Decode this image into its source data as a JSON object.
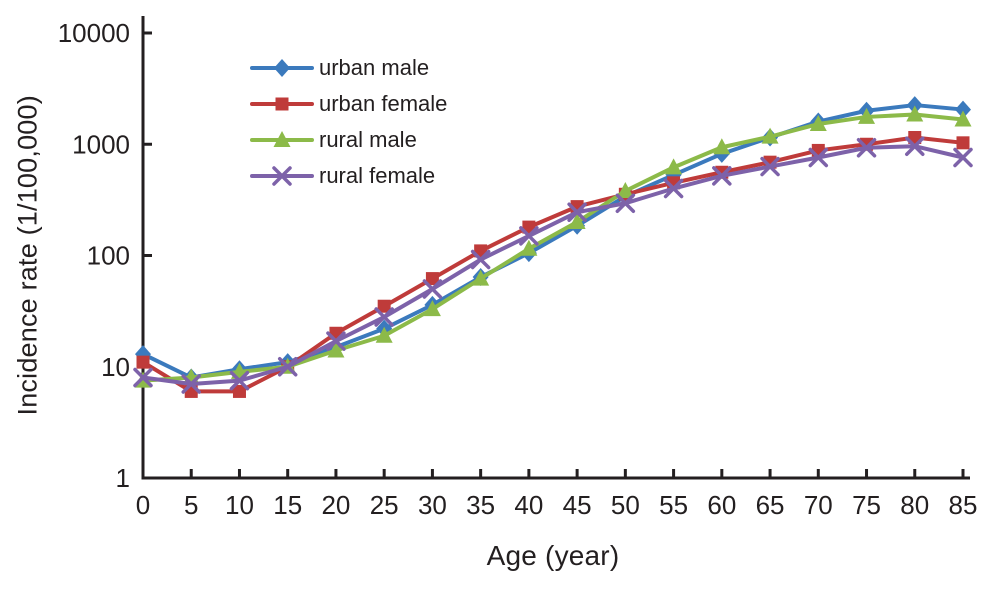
{
  "chart_data": {
    "type": "line",
    "title": "",
    "xlabel": "Age (year)",
    "ylabel": "Incidence rate (1/100,000)",
    "x_scale": "linear",
    "y_scale": "log",
    "xlim": [
      0,
      85
    ],
    "ylim": [
      1,
      10000
    ],
    "x_ticks": [
      0,
      5,
      10,
      15,
      20,
      25,
      30,
      35,
      40,
      45,
      50,
      55,
      60,
      65,
      70,
      75,
      80,
      85
    ],
    "x_tick_labels": [
      "0",
      "5",
      "10",
      "15",
      "20",
      "25",
      "30",
      "35",
      "40",
      "45",
      "50",
      "55",
      "60",
      "65",
      "70",
      "75",
      "80",
      "85"
    ],
    "y_ticks": [
      1,
      10,
      100,
      1000,
      10000
    ],
    "y_tick_labels": [
      "1",
      "10",
      "100",
      "1000",
      "10000"
    ],
    "grid": false,
    "legend_position": "upper-left-inside",
    "axis_color": "#231f20",
    "x": [
      0,
      5,
      10,
      15,
      20,
      25,
      30,
      35,
      40,
      45,
      50,
      55,
      60,
      65,
      70,
      75,
      80,
      85
    ],
    "series": [
      {
        "name": "urban male",
        "color": "#3b7abd",
        "marker": "diamond",
        "values": [
          13,
          8,
          9.5,
          11,
          15,
          22,
          36,
          64,
          105,
          185,
          340,
          530,
          820,
          1150,
          1600,
          2000,
          2250,
          2050
        ]
      },
      {
        "name": "urban female",
        "color": "#bf3b3a",
        "marker": "square",
        "values": [
          11,
          6,
          6,
          10,
          20,
          35,
          62,
          110,
          180,
          275,
          355,
          450,
          560,
          690,
          880,
          1000,
          1150,
          1030
        ]
      },
      {
        "name": "rural male",
        "color": "#8cba49",
        "marker": "triangle",
        "values": [
          7.5,
          8,
          9,
          10,
          14,
          19,
          33,
          62,
          115,
          200,
          380,
          620,
          940,
          1170,
          1520,
          1760,
          1850,
          1670
        ]
      },
      {
        "name": "rural female",
        "color": "#7d62a9",
        "marker": "x",
        "values": [
          8,
          7,
          7.5,
          10,
          17,
          28,
          50,
          92,
          150,
          245,
          295,
          400,
          520,
          630,
          760,
          930,
          960,
          760
        ]
      }
    ]
  }
}
